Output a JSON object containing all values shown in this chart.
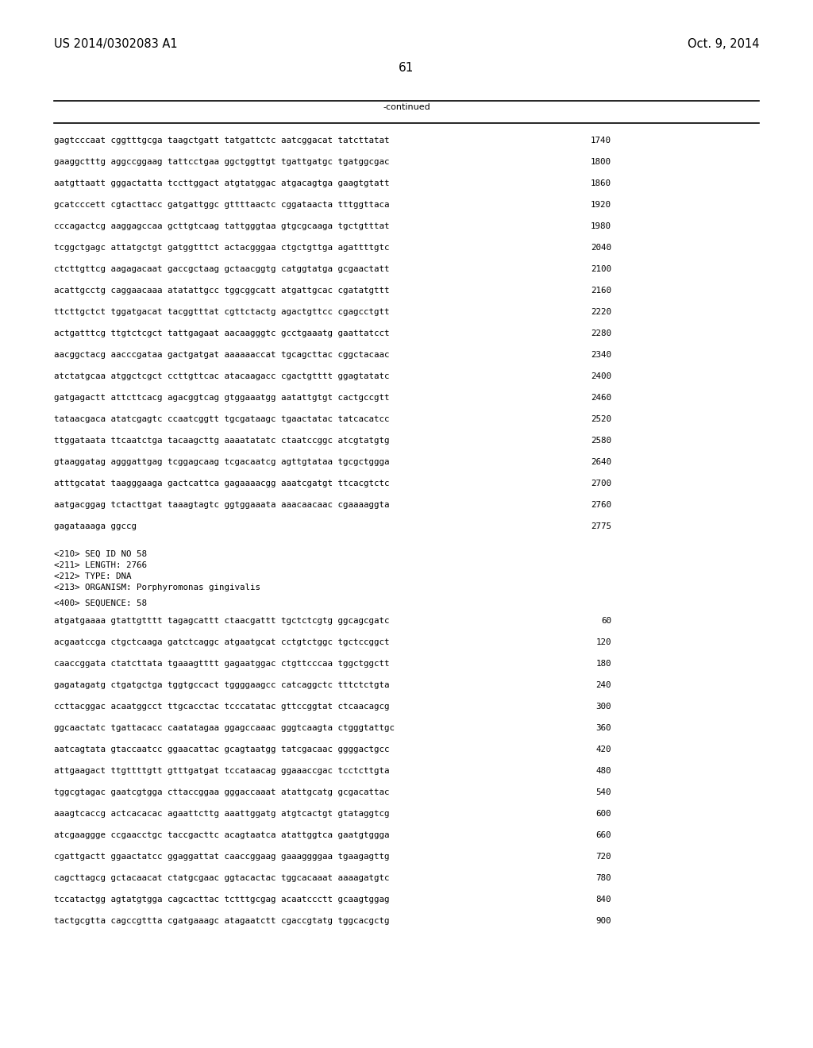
{
  "header_left": "US 2014/0302083 A1",
  "header_right": "Oct. 9, 2014",
  "page_number": "61",
  "continued_label": "-continued",
  "background_color": "#ffffff",
  "text_color": "#000000",
  "sequence_lines_top": [
    [
      "gagtcccaat cggtttgcga taagctgatt tatgattctc aatcggacat tatcttatat",
      "1740"
    ],
    [
      "gaaggctttg aggccggaag tattcctgaa ggctggttgt tgattgatgc tgatggcgac",
      "1800"
    ],
    [
      "aatgttaatt gggactatta tccttggact atgtatggac atgacagtga gaagtgtatt",
      "1860"
    ],
    [
      "gcatcccett cgtacttacc gatgattggc gttttaactc cggataacta tttggttaca",
      "1920"
    ],
    [
      "cccagactcg aaggagccaa gcttgtcaag tattgggtaa gtgcgcaaga tgctgtttat",
      "1980"
    ],
    [
      "tcggctgagc attatgctgt gatggtttct actacgggaa ctgctgttga agattttgtc",
      "2040"
    ],
    [
      "ctcttgttcg aagagacaat gaccgctaag gctaacggtg catggtatga gcgaactatt",
      "2100"
    ],
    [
      "acattgcctg caggaacaaa atatattgcc tggcggcatt atgattgcac cgatatgttt",
      "2160"
    ],
    [
      "ttcttgctct tggatgacat tacggtttat cgttctactg agactgttcc cgagcctgtt",
      "2220"
    ],
    [
      "actgatttcg ttgtctcgct tattgagaat aacaagggtc gcctgaaatg gaattatcct",
      "2280"
    ],
    [
      "aacggctacg aacccgataa gactgatgat aaaaaaccat tgcagcttac cggctacaac",
      "2340"
    ],
    [
      "atctatgcaa atggctcgct ccttgttcac atacaagacc cgactgtttt ggagtatatc",
      "2400"
    ],
    [
      "gatgagactt attcttcacg agacggtcag gtggaaatgg aatattgtgt cactgccgtt",
      "2460"
    ],
    [
      "tataacgaca atatcgagtc ccaatcggtt tgcgataagc tgaactatac tatcacatcc",
      "2520"
    ],
    [
      "ttggataata ttcaatctga tacaagcttg aaaatatatc ctaatccggc atcgtatgtg",
      "2580"
    ],
    [
      "gtaaggatag agggattgag tcggagcaag tcgacaatcg agttgtataa tgcgctggga",
      "2640"
    ],
    [
      "atttgcatat taagggaaga gactcattca gagaaaacgg aaatcgatgt ttcacgtctc",
      "2700"
    ],
    [
      "aatgacggag tctacttgat taaagtagtc ggtggaaata aaacaacaac cgaaaaggta",
      "2760"
    ],
    [
      "gagataaaga ggccg",
      "2775"
    ]
  ],
  "metadata_lines": [
    "<210> SEQ ID NO 58",
    "<211> LENGTH: 2766",
    "<212> TYPE: DNA",
    "<213> ORGANISM: Porphyromonas gingivalis"
  ],
  "sequence_label": "<400> SEQUENCE: 58",
  "sequence_lines_bottom": [
    [
      "atgatgaaaa gtattgtttt tagagcattt ctaacgattt tgctctcgtg ggcagcgatc",
      "60"
    ],
    [
      "acgaatccga ctgctcaaga gatctcaggc atgaatgcat cctgtctggc tgctccggct",
      "120"
    ],
    [
      "caaccggata ctatcttata tgaaagtttt gagaatggac ctgttcccaa tggctggctt",
      "180"
    ],
    [
      "gagatagatg ctgatgctga tggtgccact tggggaagcc catcaggctc tttctctgta",
      "240"
    ],
    [
      "ccttacggac acaatggcct ttgcacctac tcccatatac gttccggtat ctcaacagcg",
      "300"
    ],
    [
      "ggcaactatc tgattacacc caatatagaa ggagccaaac gggtcaagta ctgggtattgc",
      "360"
    ],
    [
      "aatcagtata gtaccaatcc ggaacattac gcagtaatgg tatcgacaac ggggactgcc",
      "420"
    ],
    [
      "attgaagact ttgttttgtt gtttgatgat tccataacag ggaaaccgac tcctcttgta",
      "480"
    ],
    [
      "tggcgtagac gaatcgtgga cttaccggaa gggaccaaat atattgcatg gcgacattac",
      "540"
    ],
    [
      "aaagtcaccg actcacacac agaattcttg aaattggatg atgtcactgt gtataggtcg",
      "600"
    ],
    [
      "atcgaaggge ccgaacctgc taccgacttc acagtaatca atattggtca gaatgtggga",
      "660"
    ],
    [
      "cgattgactt ggaactatcc ggaggattat caaccggaag gaaaggggaa tgaagagttg",
      "720"
    ],
    [
      "cagcttagcg gctacaacat ctatgcgaac ggtacactac tggcacaaat aaaagatgtc",
      "780"
    ],
    [
      "tccatactgg agtatgtgga cagcacttac tctttgcgag acaatccctt gcaagtggag",
      "840"
    ],
    [
      "tactgcgtta cagccgttta cgatgaaagc atagaatctt cgaccgtatg tggcacgctg",
      "900"
    ]
  ]
}
